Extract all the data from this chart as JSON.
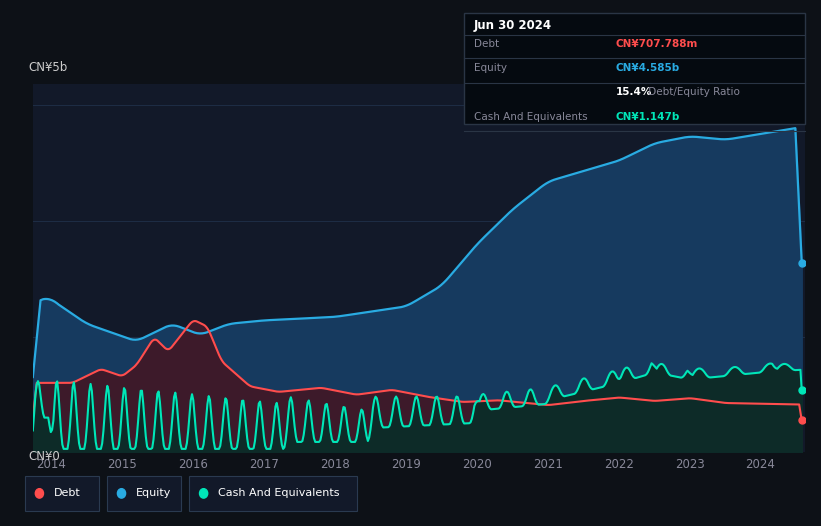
{
  "bg_color": "#0d1117",
  "plot_bg_color": "#121929",
  "title_box_color": "#050a10",
  "title_date": "Jun 30 2024",
  "ylabel_top": "CN¥5b",
  "ylabel_bottom": "CN¥0",
  "x_ticks": [
    2014,
    2015,
    2016,
    2017,
    2018,
    2019,
    2020,
    2021,
    2022,
    2023,
    2024
  ],
  "legend": [
    {
      "label": "Debt",
      "color": "#ff4d4d"
    },
    {
      "label": "Equity",
      "color": "#29abe2"
    },
    {
      "label": "Cash And Equivalents",
      "color": "#00e6b8"
    }
  ],
  "equity_color": "#29abe2",
  "equity_fill": "#163a5f",
  "debt_color": "#ff4d4d",
  "debt_fill": "#3d1a2a",
  "cash_color": "#00e6b8",
  "cash_fill": "#0d2b28",
  "grid_color": "#1e2d45",
  "axis_label_color": "#cccccc",
  "tick_color": "#888899",
  "tooltip_debt_color": "#ff4d4d",
  "tooltip_equity_color": "#29abe2",
  "tooltip_cash_color": "#00e6b8",
  "tooltip_label_color": "#888899",
  "tooltip_white": "#ffffff"
}
